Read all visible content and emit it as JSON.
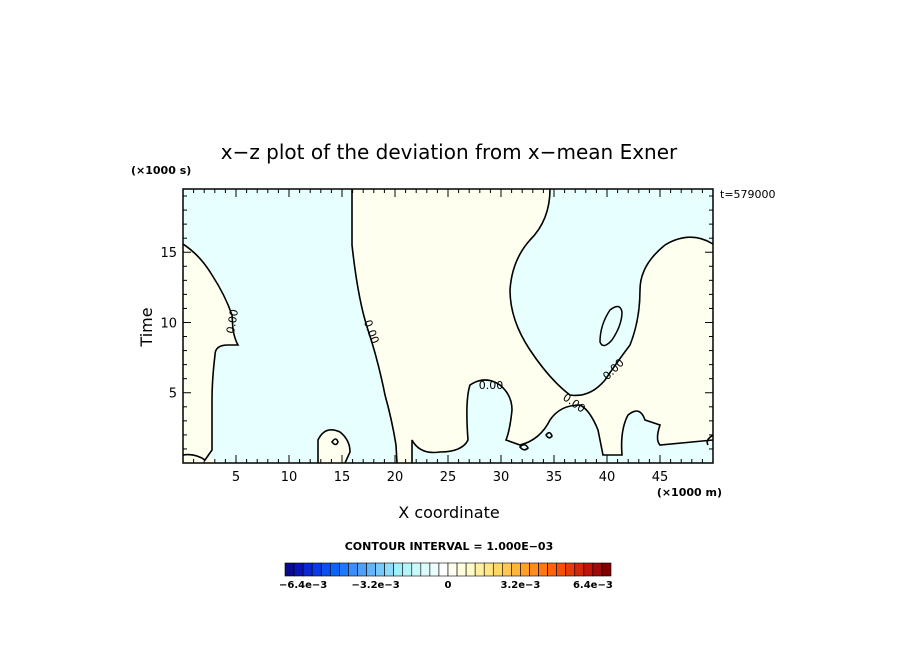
{
  "chart_data": {
    "type": "heatmap",
    "title": "x−z plot of the deviation from x−mean Exner",
    "xlabel": "X coordinate",
    "ylabel": "Time",
    "x_unit": "(×1000 m)",
    "y_unit": "(×1000 s)",
    "xlim": [
      0,
      50
    ],
    "ylim": [
      0,
      19.5
    ],
    "x_ticks": [
      "5",
      "10",
      "15",
      "20",
      "25",
      "30",
      "35",
      "40",
      "45"
    ],
    "x_tick_values": [
      5,
      10,
      15,
      20,
      25,
      30,
      35,
      40,
      45
    ],
    "y_ticks": [
      "5",
      "10",
      "15"
    ],
    "y_tick_values": [
      5,
      10,
      15
    ],
    "time_stamp": "t=579000",
    "contour_interval": "CONTOUR INTERVAL = 1.000E−03",
    "contour_labels": [
      "0.00",
      "0.00",
      "0.00",
      "0.00",
      "0.00"
    ],
    "regions": [
      {
        "name": "negative",
        "color": "#e8ffff"
      },
      {
        "name": "positive",
        "color": "#fffff0"
      }
    ],
    "colorbar": {
      "min": -0.0072,
      "max": 0.0072,
      "tick_labels": [
        "−6.4e−3",
        "−3.2e−3",
        "0",
        "3.2e−3",
        "6.4e−3"
      ],
      "tick_values": [
        -0.0064,
        -0.0032,
        0,
        0.0032,
        0.0064
      ],
      "colors": [
        "#0a0a8c",
        "#0a14b4",
        "#0a28d2",
        "#0a3ce6",
        "#0a50f0",
        "#0a64f5",
        "#1e78fa",
        "#3c8cfa",
        "#50a0fa",
        "#64b4fa",
        "#78c8fa",
        "#8cdcfa",
        "#a0f0fa",
        "#b4f5fa",
        "#c8fafa",
        "#dcfcfc",
        "#ecffff",
        "#ffffff",
        "#fffff0",
        "#ffffdc",
        "#fffac8",
        "#fff0a0",
        "#ffe682",
        "#ffd764",
        "#ffc850",
        "#ffb43c",
        "#ffa028",
        "#ff8c1e",
        "#ff7814",
        "#ff640a",
        "#f5500a",
        "#e63c0a",
        "#d2280a",
        "#be140a",
        "#a00a0a",
        "#820000"
      ]
    }
  }
}
